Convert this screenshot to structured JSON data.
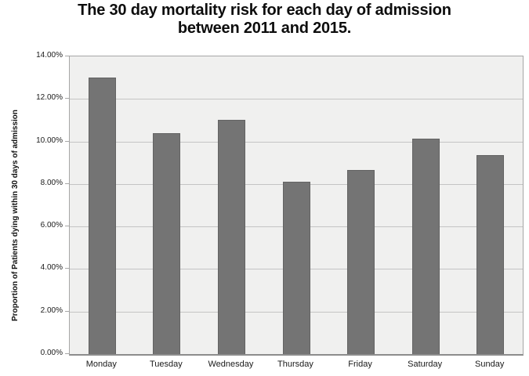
{
  "chart_data": {
    "type": "bar",
    "title": "The 30 day mortality risk for each day of admission between 2011 and 2015.",
    "title_lines": [
      "The 30 day mortality risk for each day of admission",
      "between 2011 and 2015."
    ],
    "categories": [
      "Monday",
      "Tuesday",
      "Wednesday",
      "Thursday",
      "Friday",
      "Saturday",
      "Sunday"
    ],
    "values": [
      13.0,
      10.4,
      11.0,
      8.1,
      8.65,
      10.15,
      9.35
    ],
    "xlabel": "",
    "ylabel": "Proportion of Patients dying within 30 days of admission",
    "ylim": [
      0,
      14
    ],
    "ytick_step": 2,
    "ytick_labels": [
      "0.00%",
      "2.00%",
      "4.00%",
      "6.00%",
      "8.00%",
      "10.00%",
      "12.00%",
      "14.00%"
    ],
    "grid": true,
    "legend": false,
    "colors": {
      "bar_fill": "#747474",
      "bar_border": "#636363",
      "plot_background": "#f0f0ef",
      "gridline": "#c4c4c4",
      "plot_border": "#a6a6a6",
      "axis_line": "#8c8c8c",
      "title_text": "#0d0d0d",
      "tick_text": "#1a1a1a",
      "page_background": "#ffffff"
    }
  }
}
